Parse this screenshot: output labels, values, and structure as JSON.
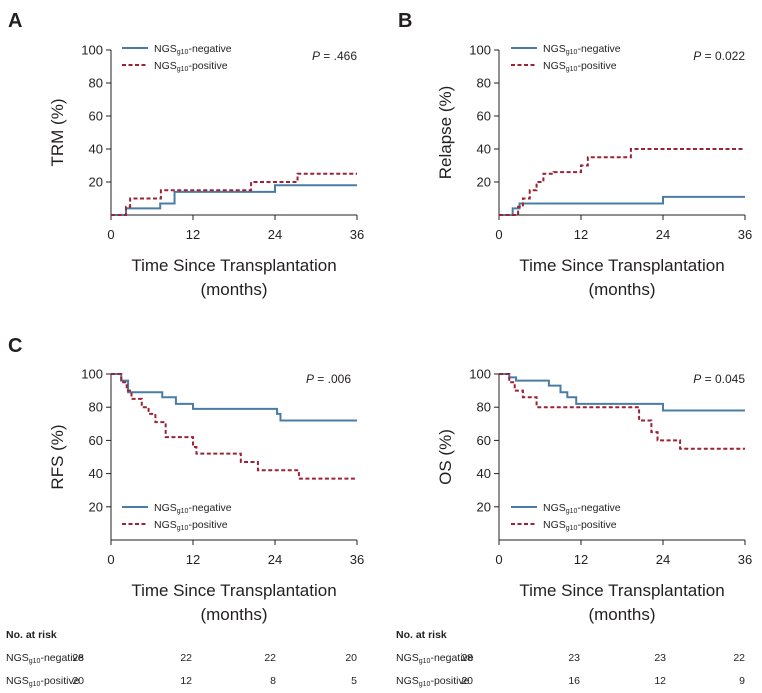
{
  "colors": {
    "negative": "#4a7ca6",
    "positive": "#9b2335",
    "axis": "#231f20"
  },
  "chart_data": [
    {
      "type": "line",
      "panel": "A",
      "ylabel": "TRM (%)",
      "xlabel": [
        "Time Since Transplantation",
        "(months)"
      ],
      "xticks": [
        0,
        12,
        24,
        36
      ],
      "yticks": [
        20,
        40,
        60,
        80,
        100
      ],
      "xlim": [
        0,
        36
      ],
      "ylim": [
        0,
        100
      ],
      "pvalue": {
        "label": "P",
        "text": " = .466"
      },
      "legend_position": "top-left",
      "series": [
        {
          "name": "NGSg10-negative",
          "style": "solid",
          "x": [
            0,
            1.5,
            2.2,
            7.2,
            9.3,
            24,
            36
          ],
          "y": [
            0,
            0,
            4,
            7,
            14,
            18,
            18
          ]
        },
        {
          "name": "NGSg10-positive",
          "style": "dashed",
          "x": [
            0,
            1.5,
            2.2,
            2.8,
            7.3,
            12,
            20.5,
            27.3,
            36
          ],
          "y": [
            0,
            0,
            5,
            10,
            15,
            15,
            20,
            25,
            25
          ]
        }
      ]
    },
    {
      "type": "line",
      "panel": "B",
      "ylabel": "Relapse (%)",
      "xlabel": [
        "Time Since Transplantation",
        "(months)"
      ],
      "xticks": [
        0,
        12,
        24,
        36
      ],
      "yticks": [
        20,
        40,
        60,
        80,
        100
      ],
      "xlim": [
        0,
        36
      ],
      "ylim": [
        0,
        100
      ],
      "pvalue": {
        "label": "P",
        "text": " = 0.022"
      },
      "legend_position": "top-left",
      "series": [
        {
          "name": "NGSg10-negative",
          "style": "solid",
          "x": [
            0,
            1.3,
            2,
            3,
            24,
            36
          ],
          "y": [
            0,
            0,
            4,
            7,
            11,
            11
          ]
        },
        {
          "name": "NGSg10-positive",
          "style": "dashed",
          "x": [
            0,
            2,
            2.8,
            3.5,
            4.5,
            5.5,
            6.5,
            8,
            12,
            13,
            18.5,
            19.3,
            36
          ],
          "y": [
            0,
            0,
            5,
            10,
            15,
            20,
            25,
            26,
            30,
            35,
            35,
            40,
            40
          ]
        }
      ]
    },
    {
      "type": "line",
      "panel": "C",
      "ylabel": "RFS (%)",
      "xlabel": [
        "Time Since Transplantation",
        "(months)"
      ],
      "xticks": [
        0,
        12,
        24,
        36
      ],
      "yticks": [
        20,
        40,
        60,
        80,
        100
      ],
      "xlim": [
        0,
        36
      ],
      "ylim": [
        0,
        100
      ],
      "pvalue": {
        "label": "P",
        "text": " = .006"
      },
      "legend_position": "bottom-left",
      "series": [
        {
          "name": "NGSg10-negative",
          "style": "solid",
          "x": [
            0,
            1.5,
            2.5,
            7.5,
            9.5,
            12,
            24.3,
            24.8,
            36
          ],
          "y": [
            100,
            96,
            89,
            86,
            82,
            79,
            76,
            72,
            72
          ]
        },
        {
          "name": "NGSg10-positive",
          "style": "dashed",
          "x": [
            0,
            1.5,
            2.3,
            3,
            4.5,
            5.5,
            6.5,
            8,
            12,
            12.5,
            17.5,
            19,
            20.5,
            21.5,
            27.5,
            36
          ],
          "y": [
            100,
            95,
            90,
            85,
            80,
            76,
            71,
            62,
            56,
            52,
            52,
            47,
            47,
            42,
            37,
            37
          ]
        }
      ]
    },
    {
      "type": "line",
      "panel": "",
      "ylabel": "OS (%)",
      "xlabel": [
        "Time Since Transplantation",
        "(months)"
      ],
      "xticks": [
        0,
        12,
        24,
        36
      ],
      "yticks": [
        20,
        40,
        60,
        80,
        100
      ],
      "xlim": [
        0,
        36
      ],
      "ylim": [
        0,
        100
      ],
      "pvalue": {
        "label": "P",
        "text": " = 0.045"
      },
      "legend_position": "bottom-left",
      "series": [
        {
          "name": "NGSg10-negative",
          "style": "solid",
          "x": [
            0,
            1.5,
            2.5,
            7.3,
            9,
            10,
            11.3,
            12,
            24,
            36
          ],
          "y": [
            100,
            98,
            96,
            93,
            89,
            86,
            82,
            82,
            78,
            78
          ]
        },
        {
          "name": "NGSg10-positive",
          "style": "dashed",
          "x": [
            0,
            1.5,
            2.3,
            3.5,
            5.5,
            7.3,
            18.3,
            20.5,
            22.3,
            23.2,
            25.5,
            26.5,
            36
          ],
          "y": [
            100,
            95,
            90,
            86,
            80,
            80,
            80,
            72,
            65,
            60,
            60,
            55,
            55
          ]
        }
      ]
    }
  ],
  "legend": {
    "negative": {
      "main": "NGS",
      "sub": "g10",
      "suffix": "-negative"
    },
    "positive": {
      "main": "NGS",
      "sub": "g10",
      "suffix": "-positive"
    }
  },
  "risk_tables": [
    {
      "header": "No. at risk",
      "rows": [
        {
          "main": "NGS",
          "sub": "g10",
          "suffix": "-negative",
          "values": [
            "28",
            "22",
            "22",
            "20"
          ]
        },
        {
          "main": "NGS",
          "sub": "g10",
          "suffix": "-positive",
          "values": [
            "20",
            "12",
            "8",
            "5"
          ]
        }
      ]
    },
    {
      "header": "No. at risk",
      "rows": [
        {
          "main": "NGS",
          "sub": "g10",
          "suffix": "-negative",
          "values": [
            "28",
            "23",
            "23",
            "22"
          ]
        },
        {
          "main": "NGS",
          "sub": "g10",
          "suffix": "-positive",
          "values": [
            "20",
            "16",
            "12",
            "9"
          ]
        }
      ]
    }
  ]
}
